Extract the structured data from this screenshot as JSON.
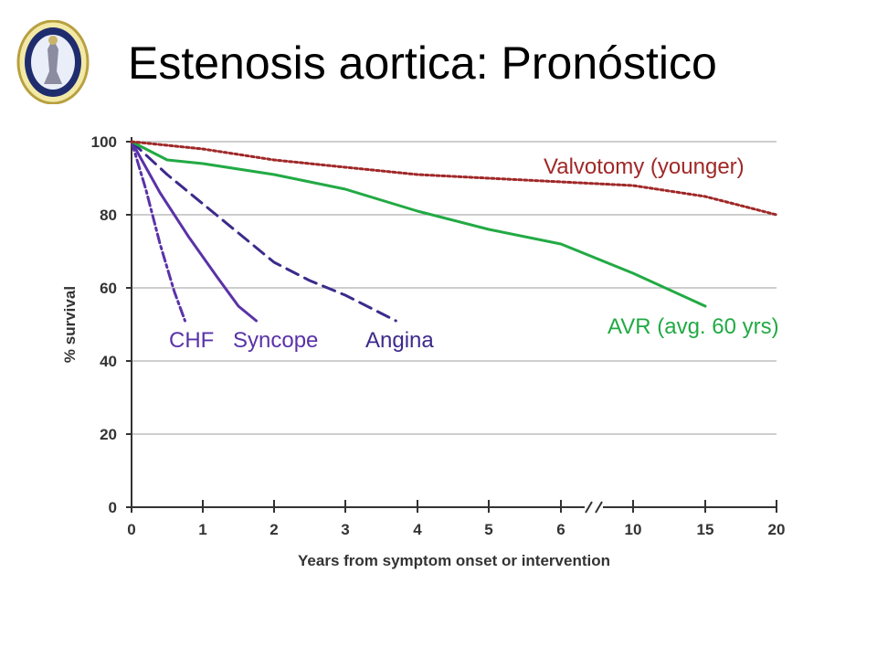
{
  "slide": {
    "title": "Estenosis aortica: Pronóstico",
    "logo": "university-seal"
  },
  "chart_data": {
    "type": "line",
    "title": "",
    "xlabel": "Years from symptom onset or intervention",
    "ylabel": "% survival",
    "ylim": [
      0,
      100
    ],
    "yticks": [
      0,
      20,
      40,
      60,
      80,
      100
    ],
    "x_axis_note": "broken axis after 6: linear 0–6, then 10, 15, 20",
    "xtick_labels": [
      "0",
      "1",
      "2",
      "3",
      "4",
      "5",
      "6",
      "10",
      "15",
      "20"
    ],
    "grid": "horizontal",
    "legend": "inline labels",
    "series": [
      {
        "name": "CHF",
        "color": "#5a32a8",
        "style": "dash-dot",
        "points": [
          [
            0,
            100
          ],
          [
            0.2,
            87
          ],
          [
            0.4,
            72
          ],
          [
            0.6,
            59
          ],
          [
            0.75,
            51
          ]
        ]
      },
      {
        "name": "Syncope",
        "color": "#5a32a8",
        "style": "solid",
        "points": [
          [
            0,
            100
          ],
          [
            0.4,
            86
          ],
          [
            0.8,
            74
          ],
          [
            1.2,
            63
          ],
          [
            1.5,
            55
          ],
          [
            1.75,
            51
          ]
        ]
      },
      {
        "name": "Angina",
        "color": "#3d2a8c",
        "style": "dashed",
        "points": [
          [
            0,
            100
          ],
          [
            0.5,
            91
          ],
          [
            1,
            83
          ],
          [
            1.5,
            75
          ],
          [
            2,
            67
          ],
          [
            2.5,
            62
          ],
          [
            3,
            58
          ],
          [
            3.5,
            53
          ],
          [
            3.7,
            51
          ]
        ]
      },
      {
        "name": "AVR (avg. 60 yrs)",
        "color": "#22aa44",
        "style": "solid",
        "points": [
          [
            0,
            100
          ],
          [
            0.5,
            95
          ],
          [
            1,
            94
          ],
          [
            2,
            91
          ],
          [
            3,
            87
          ],
          [
            4,
            81
          ],
          [
            5,
            76
          ],
          [
            6,
            72
          ],
          [
            10,
            64
          ],
          [
            15,
            55
          ]
        ]
      },
      {
        "name": "Valvotomy (younger)",
        "color": "#a02828",
        "style": "dotted",
        "points": [
          [
            0,
            100
          ],
          [
            1,
            98
          ],
          [
            2,
            95
          ],
          [
            3,
            93
          ],
          [
            4,
            91
          ],
          [
            5,
            90
          ],
          [
            6,
            89
          ],
          [
            10,
            88
          ],
          [
            15,
            85
          ],
          [
            20,
            80
          ]
        ]
      }
    ]
  }
}
